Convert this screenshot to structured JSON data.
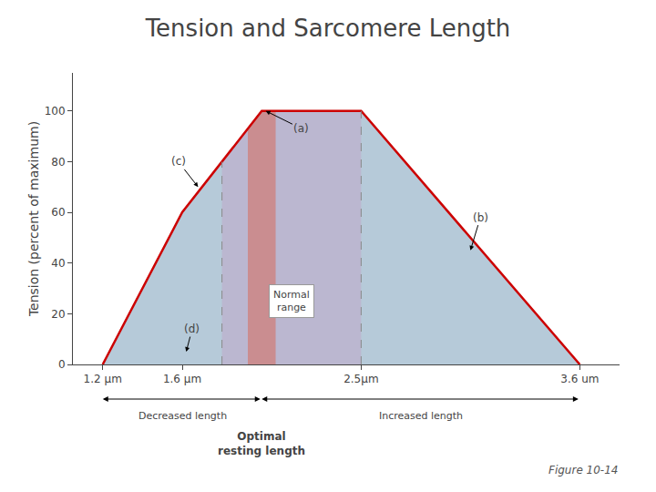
{
  "chart_data": {
    "type": "area",
    "title": "Tension and Sarcomere Length",
    "ylabel": "Tension (percent of maximum)",
    "x": [
      1.2,
      1.6,
      2.0,
      2.5,
      3.6
    ],
    "values": [
      0,
      60,
      100,
      100,
      0
    ],
    "color": "#cc0000",
    "fill_color": "#9db8cc",
    "xlim": [
      1.05,
      3.8
    ],
    "ylim": [
      0,
      115
    ],
    "xticks": [
      {
        "value": 1.2,
        "label": "1.2 µm"
      },
      {
        "value": 1.6,
        "label": "1.6 µm"
      },
      {
        "value": 2.5,
        "label": "2.5µm"
      },
      {
        "value": 3.6,
        "label": "3.6 um"
      }
    ],
    "yticks": [
      0,
      20,
      40,
      60,
      80,
      100
    ],
    "grid": false,
    "normal_range": {
      "x": [
        1.8,
        2.5
      ],
      "color": "#c0a8c8"
    },
    "highlight": {
      "x": [
        1.93,
        2.07
      ],
      "color": "#cc8888"
    },
    "annotations": [
      {
        "text": "Normal\nrange",
        "x": 2.15,
        "y": 25
      },
      {
        "text": "(a)",
        "x": 2.02,
        "y": 100,
        "text_x": 2.2,
        "text_y": 93
      },
      {
        "text": "(c)",
        "x": 1.68,
        "y": 70,
        "text_x": 1.58,
        "text_y": 80
      },
      {
        "text": "(b)",
        "x": 3.05,
        "y": 45,
        "text_x": 3.1,
        "text_y": 58
      },
      {
        "text": "(d)",
        "x": 1.62,
        "y": 5,
        "text_x": 1.65,
        "text_y": 14
      }
    ],
    "length_spans": [
      {
        "text": "Decreased length",
        "from": 1.2,
        "to": 2.0
      },
      {
        "text": "Increased length",
        "from": 2.0,
        "to": 3.6
      }
    ],
    "optimal_label": {
      "text": "Optimal\nresting length",
      "x": 2.0
    },
    "caption": "Figure 10-14"
  }
}
